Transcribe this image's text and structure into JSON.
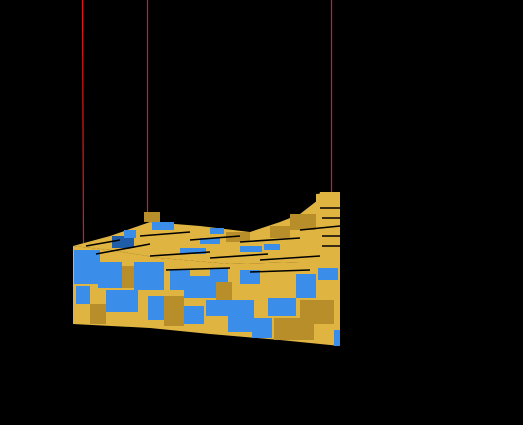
{
  "viewport": {
    "background": "#000000"
  },
  "colors": {
    "gold": "#E0B441",
    "gold_dark": "#B88E2A",
    "blue": "#3A8EEA",
    "blue_dark": "#1F5DA8",
    "edge": "#000000",
    "probe": "#E01818"
  },
  "scene": {
    "probes": [
      {
        "name": "probe-line-left"
      },
      {
        "name": "probe-line-middle"
      },
      {
        "name": "probe-line-right"
      }
    ]
  }
}
